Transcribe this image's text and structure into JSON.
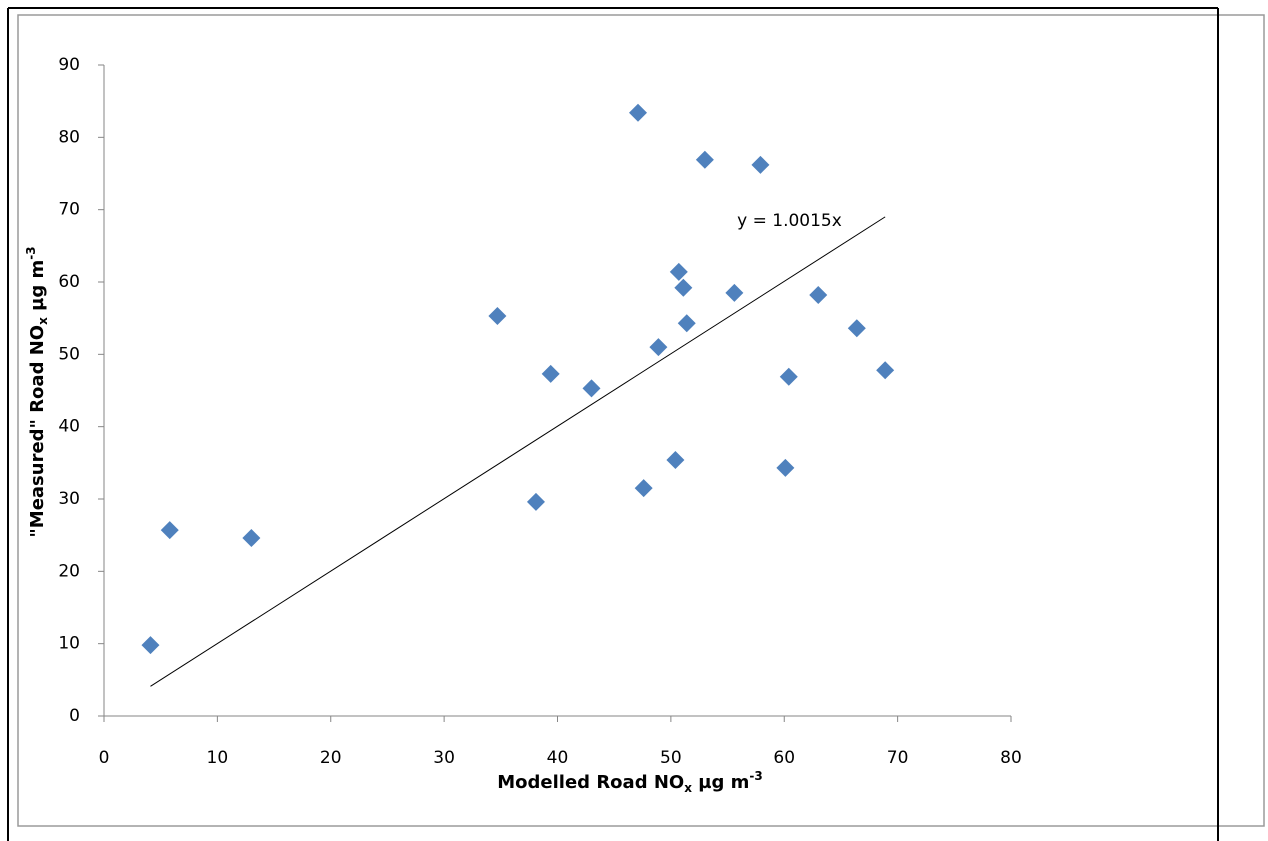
{
  "chart_data": {
    "type": "scatter",
    "x_label": [
      "Modelled Road NO",
      "x",
      " µg m",
      "-3"
    ],
    "y_label": [
      "\"Measured\" Road NO",
      "x",
      " µg m",
      "-3"
    ],
    "x": [
      4.1,
      5.8,
      13.0,
      34.7,
      38.1,
      39.4,
      43.0,
      47.1,
      47.6,
      48.9,
      50.4,
      50.7,
      51.1,
      51.4,
      53.0,
      55.6,
      57.9,
      60.1,
      60.4,
      63.0,
      66.4,
      68.9
    ],
    "values": [
      9.8,
      25.7,
      24.6,
      55.3,
      29.6,
      47.3,
      45.3,
      83.4,
      31.5,
      51.0,
      35.4,
      61.4,
      59.2,
      54.3,
      76.9,
      58.5,
      76.2,
      34.3,
      46.9,
      58.2,
      53.6,
      47.8
    ],
    "color": "#4f81bd",
    "trendline": {
      "slope": 1.0015,
      "label": "y = 1.0015x"
    },
    "xlim": [
      0,
      80
    ],
    "xticks": [
      0,
      10,
      20,
      30,
      40,
      50,
      60,
      70,
      80
    ],
    "ylim": [
      0,
      90
    ],
    "yticks": [
      0,
      10,
      20,
      30,
      40,
      50,
      60,
      70,
      80,
      90
    ],
    "grid": false
  }
}
